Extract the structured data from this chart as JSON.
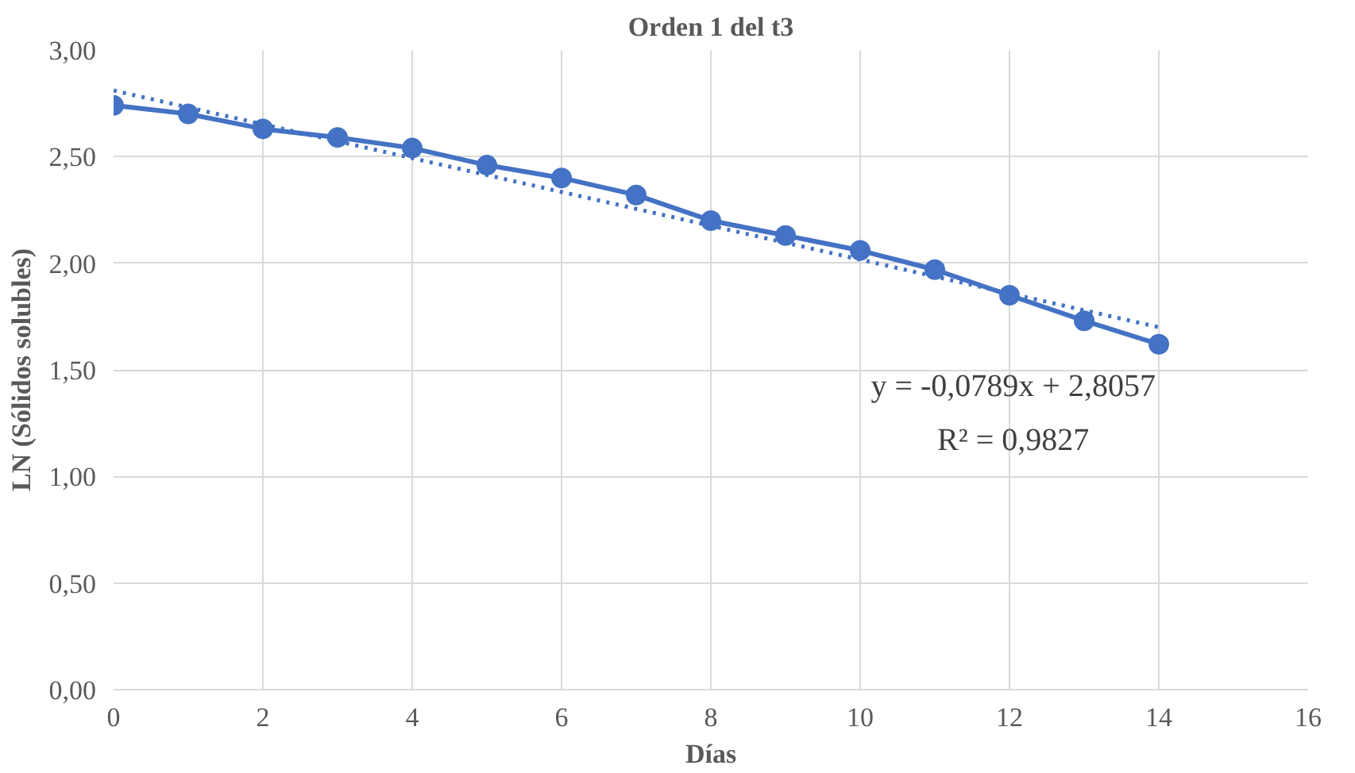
{
  "chart_data": {
    "type": "line",
    "title": "Orden 1 del t3",
    "xlabel": "Días",
    "ylabel": "LN (Sólidos solubles)",
    "x": [
      0,
      1,
      2,
      3,
      4,
      5,
      6,
      7,
      8,
      9,
      10,
      11,
      12,
      13,
      14
    ],
    "series": [
      {
        "color": "#4472c4",
        "marker": "circle",
        "line_style": "solid",
        "values": [
          2.74,
          2.7,
          2.63,
          2.59,
          2.54,
          2.46,
          2.4,
          2.32,
          2.2,
          2.13,
          2.06,
          1.97,
          1.85,
          1.73,
          1.62
        ]
      },
      {
        "type": "line",
        "color": "#4472c4",
        "marker": "none",
        "line_style": "dotted",
        "x": [
          0,
          14
        ],
        "values": [
          2.81,
          1.7
        ]
      }
    ],
    "xlim": [
      0,
      16
    ],
    "xticks": [
      0,
      2,
      4,
      6,
      8,
      10,
      12,
      14,
      16
    ],
    "ylim": [
      0,
      3
    ],
    "yticks": [
      {
        "value": 0,
        "label": "0,00"
      },
      {
        "value": 0.5,
        "label": "0,50"
      },
      {
        "value": 1,
        "label": "1,00"
      },
      {
        "value": 1.5,
        "label": "1,50"
      },
      {
        "value": 2,
        "label": "2,00"
      },
      {
        "value": 2.5,
        "label": "2,50"
      },
      {
        "value": 3,
        "label": "3,00"
      }
    ],
    "grid": true,
    "annotations": [
      "y = -0,0789x + 2,8057",
      "R² = 0,9827"
    ]
  }
}
